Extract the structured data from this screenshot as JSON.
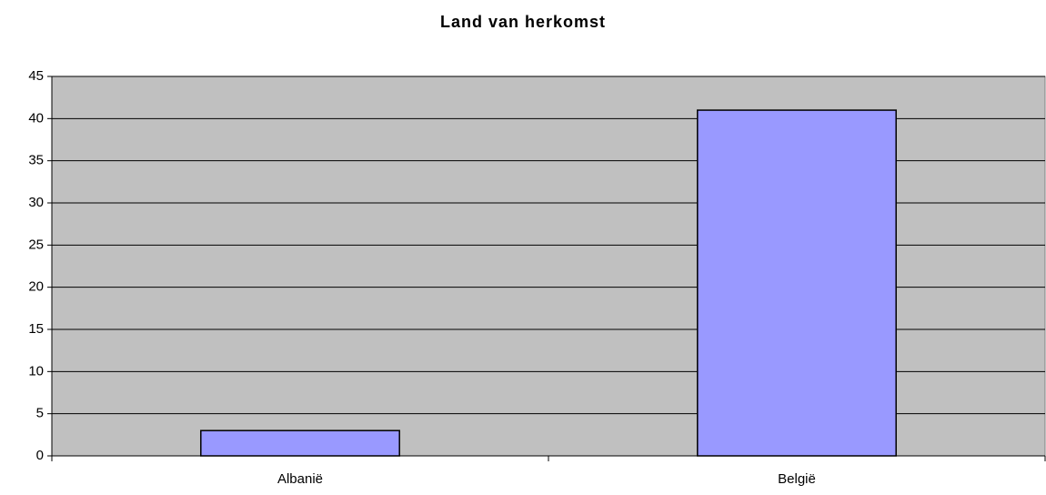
{
  "chart_data": {
    "type": "bar",
    "title": "Land van herkomst",
    "categories": [
      "Albanië",
      "België"
    ],
    "values": [
      3,
      41
    ],
    "color": "#9999ff",
    "ylim": [
      0,
      45
    ],
    "yticks": [
      0,
      5,
      10,
      15,
      20,
      25,
      30,
      35,
      40,
      45
    ],
    "grid": true
  }
}
